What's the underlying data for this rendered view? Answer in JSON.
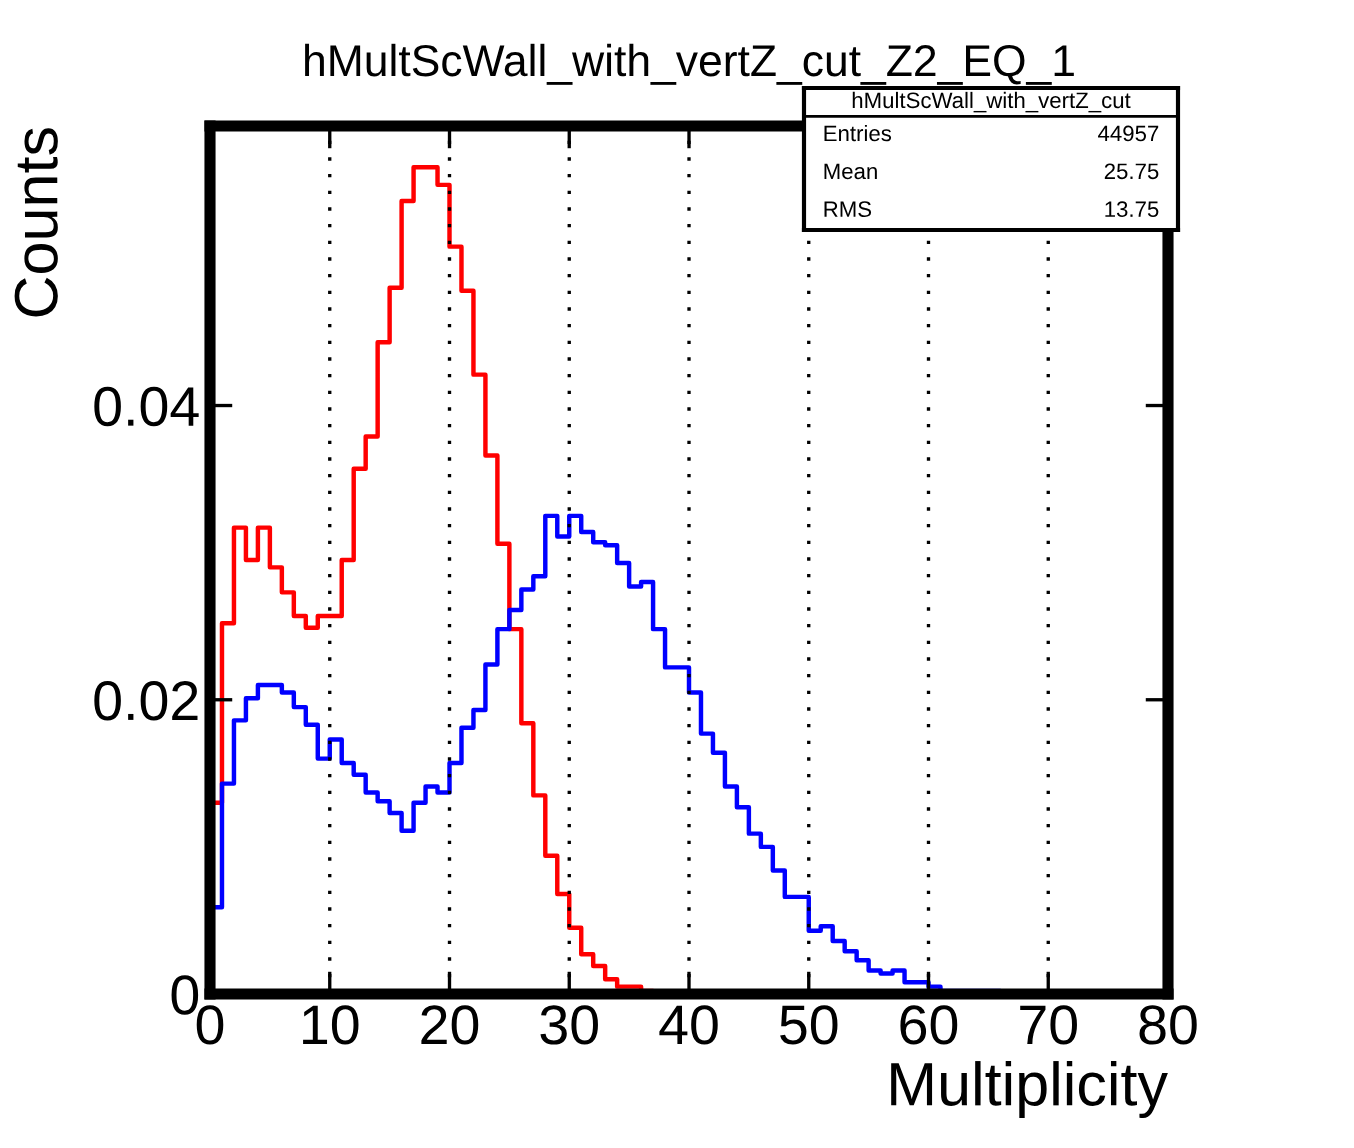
{
  "chart_data": {
    "type": "histogram",
    "title": "hMultScWall_with_vertZ_cut_Z2_EQ_1",
    "xlabel": "Multiplicity",
    "ylabel": "Counts",
    "annotations": [
      "hMultScWall_with_vertZ_cut",
      "Entries",
      "44957",
      "Mean",
      "25.75",
      "RMS",
      "13.75"
    ],
    "bins": [
      0,
      1,
      2,
      3,
      4,
      5,
      6,
      7,
      8,
      9,
      10,
      11,
      12,
      13,
      14,
      15,
      16,
      17,
      18,
      19,
      20,
      21,
      22,
      23,
      24,
      25,
      26,
      27,
      28,
      29,
      30,
      31,
      32,
      33,
      34,
      35,
      36,
      37,
      38,
      39,
      40,
      41,
      42,
      43,
      44,
      45,
      46,
      47,
      48,
      49,
      50,
      51,
      52,
      53,
      54,
      55,
      56,
      57,
      58,
      59,
      60,
      61,
      62,
      63,
      64,
      65,
      66,
      67,
      68,
      69,
      70,
      71,
      72,
      73,
      74,
      75,
      76,
      77,
      78,
      79,
      80
    ],
    "series": [
      {
        "color": "#ff0000",
        "bins": [
          0,
          1,
          2,
          3,
          4,
          5,
          6,
          7,
          8,
          9,
          10,
          11,
          12,
          13,
          14,
          15,
          16,
          17,
          18,
          19,
          20,
          21,
          22,
          23,
          24,
          25,
          26,
          27,
          28,
          29,
          30,
          31,
          32,
          33,
          34,
          35,
          36,
          37,
          38,
          39,
          40,
          41,
          42,
          43,
          44,
          45,
          46,
          47,
          48,
          49,
          50,
          51,
          52,
          53,
          54,
          55,
          56,
          57,
          58,
          59,
          60,
          61,
          62,
          63,
          64,
          65,
          66,
          67
        ],
        "values": [
          0.013,
          0.0252,
          0.0317,
          0.0295,
          0.0317,
          0.029,
          0.0273,
          0.0257,
          0.0249,
          0.0257,
          0.0257,
          0.0295,
          0.0357,
          0.0379,
          0.0443,
          0.048,
          0.0539,
          0.0562,
          0.0562,
          0.055,
          0.0508,
          0.0478,
          0.0421,
          0.0366,
          0.0306,
          0.0248,
          0.0184,
          0.0135,
          0.0094,
          0.0068,
          0.0045,
          0.0027,
          0.0019,
          0.001,
          0.0005,
          0.0005,
          0.0002,
          0.0001,
          0.0001,
          0.0001,
          0.0001,
          0.0001,
          0.0001,
          0.0001,
          0.0001,
          0.0001,
          0.0001,
          0.0001,
          0.0001,
          0.0001,
          0.0001,
          0.0001,
          0.0001,
          0.0001,
          0.0001,
          0.0001,
          0.0001,
          0.0001,
          0.0001,
          0.0001,
          0.0001,
          0.0001,
          0.0001,
          0.0001,
          0.0001,
          0.0001,
          0.0001
        ]
      },
      {
        "color": "#0000ff",
        "values": [
          0.0059,
          0.0143,
          0.0186,
          0.0201,
          0.021,
          0.021,
          0.0205,
          0.0195,
          0.0183,
          0.016,
          0.0173,
          0.0157,
          0.0149,
          0.0137,
          0.0131,
          0.0123,
          0.0111,
          0.013,
          0.0141,
          0.0137,
          0.0157,
          0.0181,
          0.0193,
          0.0224,
          0.0248,
          0.0261,
          0.0275,
          0.0284,
          0.0325,
          0.0311,
          0.0325,
          0.0314,
          0.0307,
          0.0305,
          0.0293,
          0.0277,
          0.028,
          0.0248,
          0.0222,
          0.0222,
          0.0205,
          0.0177,
          0.0164,
          0.0141,
          0.0127,
          0.0109,
          0.01,
          0.0084,
          0.0066,
          0.0066,
          0.0043,
          0.0046,
          0.0036,
          0.0029,
          0.0023,
          0.0016,
          0.0014,
          0.0016,
          0.0008,
          0.0008,
          0.0005,
          0.0002,
          0.0002,
          0.0002,
          0.0002,
          0.0002,
          0.0001,
          0.0001,
          0.0001,
          0.0001,
          0.0001,
          0.0001,
          0.0001,
          0.0001,
          0.0001,
          0.0001,
          0.0001,
          0.0001,
          0.0001,
          0.0001
        ]
      }
    ],
    "xlim": [
      0,
      80
    ],
    "xticks": [
      0,
      10,
      20,
      30,
      40,
      50,
      60,
      70,
      80
    ],
    "ylim": [
      0,
      0.059
    ],
    "yticks": [
      0,
      {
        "value": 0.02,
        "label": "0.02"
      },
      {
        "value": 0.04,
        "label": "0.04"
      }
    ],
    "grid": "x"
  }
}
